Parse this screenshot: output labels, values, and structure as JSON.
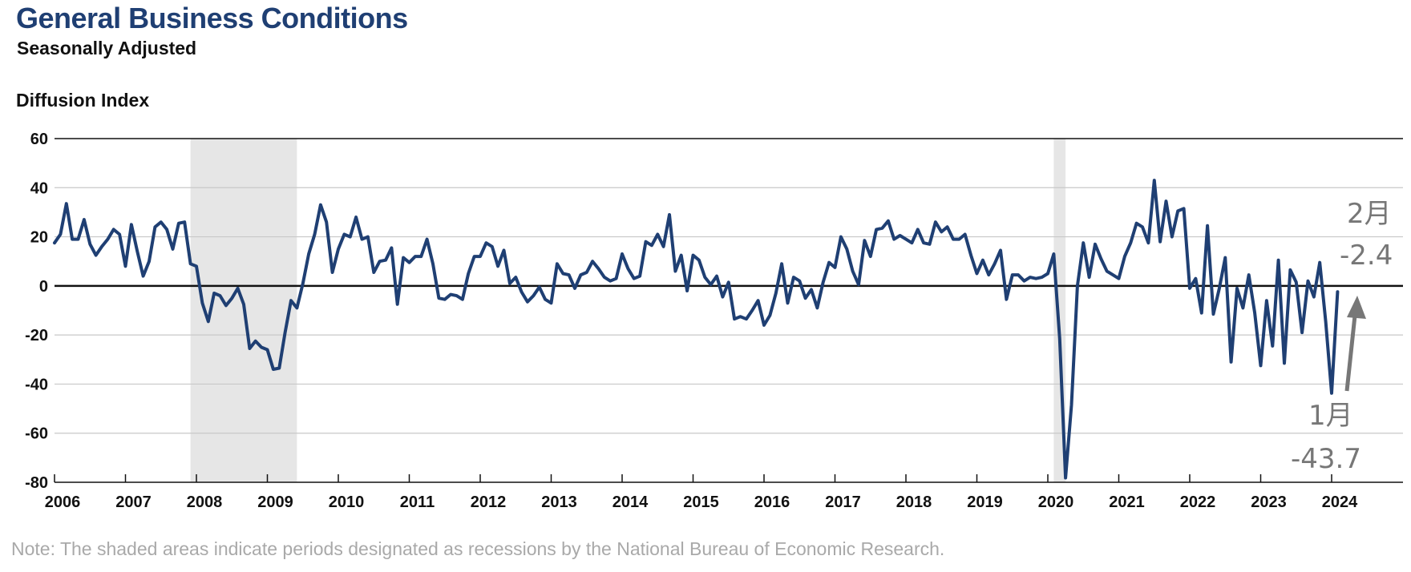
{
  "chart_data": {
    "type": "line",
    "title": "General Business Conditions",
    "subtitle": "Seasonally Adjusted",
    "ylabel": "Diffusion Index",
    "ylim": [
      -80,
      60
    ],
    "yticks": [
      60,
      40,
      20,
      0,
      -20,
      -40,
      -60,
      -80
    ],
    "xlim": [
      2006,
      2025.0
    ],
    "xticks": [
      "2006",
      "2007",
      "2008",
      "2009",
      "2010",
      "2011",
      "2012",
      "2013",
      "2014",
      "2015",
      "2016",
      "2017",
      "2018",
      "2019",
      "2020",
      "2021",
      "2022",
      "2023",
      "2024"
    ],
    "grid": "horizontal",
    "recessions": [
      {
        "start": "2007-12",
        "end": "2009-06"
      },
      {
        "start": "2020-02",
        "end": "2020-04"
      }
    ],
    "series": [
      {
        "start": "2006-01",
        "frequency": "monthly",
        "values": [
          17.5,
          21,
          33.5,
          19,
          19,
          27,
          17,
          12.5,
          16,
          19,
          23,
          21,
          8,
          25,
          14,
          4,
          10,
          24,
          26,
          23,
          15,
          25.5,
          26,
          9,
          8,
          -7,
          -14.5,
          -3,
          -4,
          -8,
          -5,
          -1,
          -7.5,
          -25.5,
          -22.5,
          -25,
          -26,
          -34,
          -33.5,
          -19,
          -6,
          -9,
          1,
          13,
          21,
          33,
          26,
          5.5,
          15,
          21,
          20,
          28,
          19,
          20,
          5.5,
          10,
          10.5,
          15.5,
          -7.5,
          11.5,
          9.5,
          12,
          12,
          19,
          9,
          -5,
          -5.5,
          -3.5,
          -4,
          -5.5,
          5,
          12,
          12,
          17.5,
          16,
          8,
          14.5,
          1,
          3.5,
          -2.5,
          -6.5,
          -4,
          -0.5,
          -5.5,
          -7,
          9,
          5,
          4.5,
          -1,
          4.5,
          5.5,
          10,
          7,
          3.5,
          2,
          3,
          13,
          7,
          3,
          4,
          18,
          16.5,
          21,
          16,
          29,
          6,
          12.5,
          -2,
          12.5,
          10.5,
          3.5,
          0.5,
          4,
          -4.5,
          1.5,
          -13.5,
          -12.5,
          -13.5,
          -10,
          -6,
          -16,
          -12,
          -3,
          9,
          -7,
          3.5,
          2,
          -5,
          -1.5,
          -9,
          1.5,
          9.5,
          7.5,
          20,
          15,
          6,
          0.5,
          18.5,
          12,
          23,
          23.5,
          26.5,
          19,
          20.5,
          19,
          17.5,
          23,
          17.5,
          17,
          26,
          22,
          24,
          19,
          19,
          21,
          12.5,
          5,
          10.5,
          4.5,
          9,
          14.5,
          -5.5,
          4.5,
          4.5,
          2,
          3.5,
          3,
          3.5,
          5,
          13,
          -21.5,
          -78.2,
          -48.5,
          0,
          17.5,
          3.5,
          17,
          11,
          6,
          4.5,
          3,
          12,
          17.5,
          25.5,
          24,
          17.5,
          43,
          18,
          34.5,
          20,
          30.5,
          31.5,
          -1,
          3,
          -11,
          24.5,
          -11.5,
          -1,
          11.5,
          -31,
          -1,
          -9,
          4.5,
          -11,
          -32.5,
          -6,
          -24.5,
          10.5,
          -31.5,
          6.5,
          1.5,
          -19,
          2,
          -4.5,
          9.5,
          -14.5,
          -43.7,
          -2.4
        ]
      }
    ],
    "annotations": [
      {
        "month": "2月",
        "value": "-2.4"
      },
      {
        "month": "1月",
        "value": "-43.7"
      }
    ]
  },
  "note": "Note: The shaded areas indicate periods designated as recessions by the National Bureau of Economic Research.",
  "colors": {
    "line": "#1f3f73",
    "recession": "#e6e6e6",
    "grid": "#c8c8c8",
    "annotation": "#777777",
    "title": "#1f3f73"
  }
}
